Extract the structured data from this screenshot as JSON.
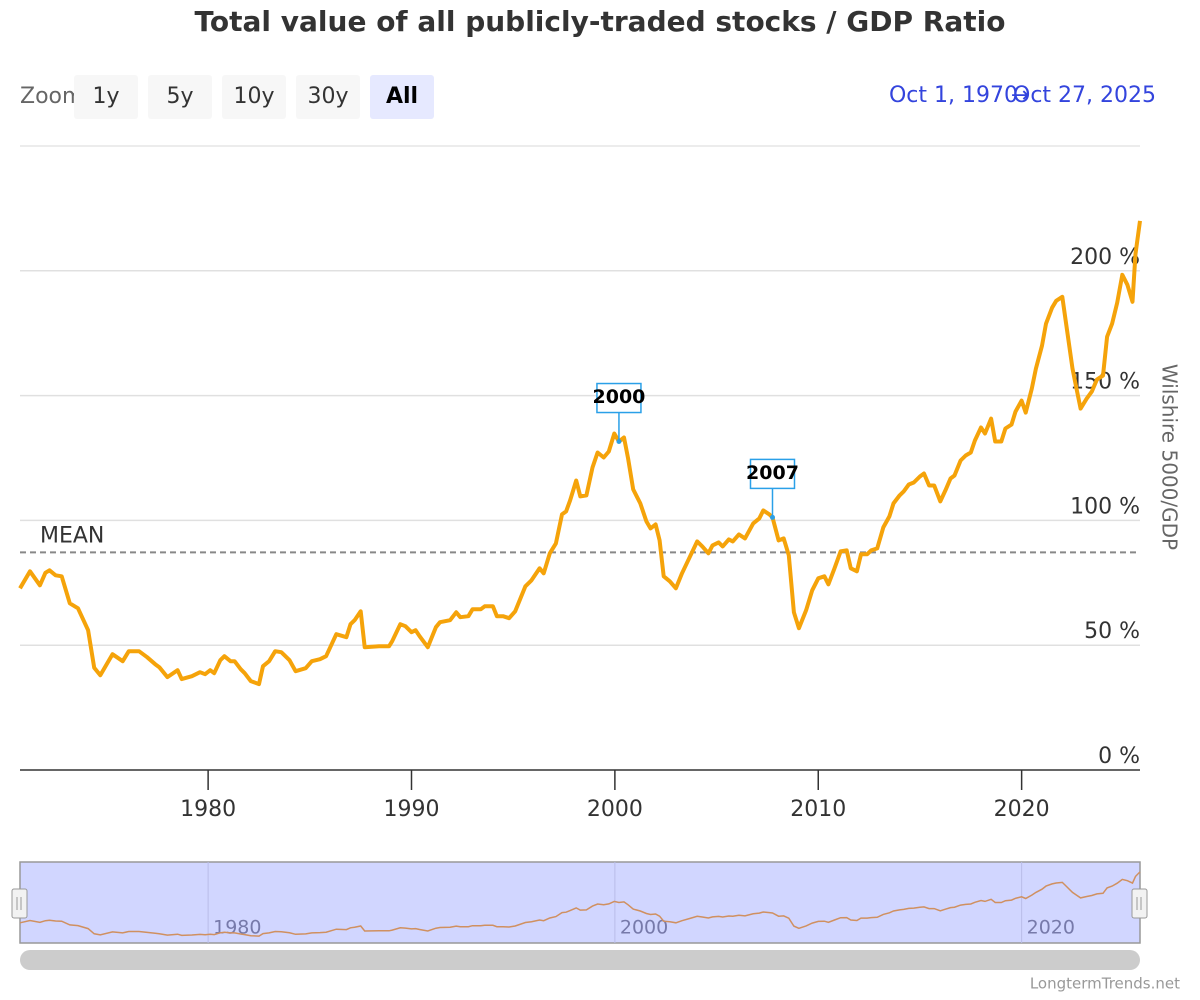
{
  "chart_data": {
    "type": "line",
    "title": "Total value of all publicly-traded stocks / GDP Ratio",
    "range_selector": {
      "label": "Zoom",
      "buttons": [
        "1y",
        "5y",
        "10y",
        "30y",
        "All"
      ],
      "selected": 4
    },
    "date_range": {
      "from": "Oct 1, 1970",
      "separator": "→",
      "to": "Oct 27, 2025"
    },
    "y_axis_title": "Wilshire 5000/GDP",
    "credit": "LongtermTrends.net",
    "xlim": [
      1970.75,
      2025.82
    ],
    "xticks": [
      1980,
      1990,
      2000,
      2010,
      2020
    ],
    "navigator_xticks": [
      1980,
      2000,
      2020
    ],
    "ylim": [
      0,
      250
    ],
    "yticks": [
      {
        "value": 0,
        "label": "0 %"
      },
      {
        "value": 50,
        "label": "50 %"
      },
      {
        "value": 100,
        "label": "100 %"
      },
      {
        "value": 150,
        "label": "150 %"
      },
      {
        "value": 200,
        "label": "200 %"
      }
    ],
    "grid": true,
    "mean": {
      "label": "MEAN",
      "value": 87.2
    },
    "annotations": [
      {
        "label": "2000",
        "x": 2000.2,
        "y": 131.6
      },
      {
        "label": "2007",
        "x": 2007.75,
        "y": 101.2
      }
    ],
    "series": [
      {
        "color": "#f5a30a",
        "navigator_color": "#d09060",
        "x": [
          1970.75,
          1971.24,
          1971.73,
          1972,
          1972.2,
          1972.5,
          1972.8,
          1973.2,
          1973.6,
          1974.1,
          1974.4,
          1974.7,
          1975.3,
          1975.8,
          1976.1,
          1976.6,
          1977,
          1977.4,
          1977.6,
          1978,
          1978.5,
          1978.7,
          1979.2,
          1979.6,
          1979.85,
          1980.1,
          1980.3,
          1980.6,
          1980.8,
          1981.1,
          1981.3,
          1981.6,
          1981.8,
          1982.1,
          1982.5,
          1982.7,
          1983,
          1983.3,
          1983.6,
          1984,
          1984.3,
          1984.8,
          1985.1,
          1985.5,
          1985.8,
          1986.3,
          1986.8,
          1987,
          1987.2,
          1987.5,
          1987.7,
          1988.4,
          1988.9,
          1989.05,
          1989.45,
          1989.7,
          1990,
          1990.2,
          1990.4,
          1990.8,
          1991.2,
          1991.4,
          1991.9,
          1992.2,
          1992.4,
          1992.8,
          1993,
          1993.4,
          1993.6,
          1994,
          1994.2,
          1994.5,
          1994.8,
          1995.1,
          1995.6,
          1995.9,
          1996.3,
          1996.5,
          1996.8,
          1997.1,
          1997.4,
          1997.6,
          1997.8,
          1998.1,
          1998.3,
          1998.6,
          1998.9,
          1999.15,
          1999.45,
          1999.7,
          1999.97,
          2000.2,
          2000.45,
          2000.65,
          2000.9,
          2001.25,
          2001.55,
          2001.75,
          2002,
          2002.2,
          2002.4,
          2002.7,
          2003,
          2003.3,
          2003.7,
          2004.05,
          2004.3,
          2004.6,
          2004.8,
          2005.1,
          2005.3,
          2005.6,
          2005.8,
          2006.1,
          2006.4,
          2006.8,
          2007.1,
          2007.3,
          2007.6,
          2007.75,
          2008.05,
          2008.3,
          2008.55,
          2008.8,
          2009.05,
          2009.4,
          2009.7,
          2010,
          2010.3,
          2010.5,
          2010.8,
          2011.1,
          2011.4,
          2011.6,
          2011.9,
          2012.1,
          2012.4,
          2012.6,
          2012.9,
          2013.2,
          2013.5,
          2013.7,
          2014,
          2014.2,
          2014.45,
          2014.7,
          2015,
          2015.2,
          2015.45,
          2015.7,
          2016,
          2016.25,
          2016.5,
          2016.7,
          2017,
          2017.25,
          2017.5,
          2017.7,
          2018,
          2018.2,
          2018.5,
          2018.7,
          2019,
          2019.2,
          2019.5,
          2019.7,
          2020,
          2020.2,
          2020.5,
          2020.7,
          2021,
          2021.2,
          2021.5,
          2021.7,
          2022,
          2022.2,
          2022.5,
          2022.7,
          2022.9,
          2023.2,
          2023.45,
          2023.7,
          2024,
          2024.2,
          2024.45,
          2024.7,
          2024.95,
          2025.2,
          2025.45,
          2025.6,
          2025.82
        ],
        "values": [
          72.8,
          79.6,
          74,
          79,
          80,
          78,
          77.6,
          66.8,
          64.8,
          56,
          41,
          38,
          46.4,
          43.6,
          47.6,
          47.6,
          45.2,
          42.4,
          41.2,
          37.2,
          40,
          36.4,
          37.6,
          39.2,
          38.4,
          40,
          38.8,
          44,
          45.6,
          43.6,
          43.6,
          40.4,
          38.8,
          35.6,
          34.4,
          41.6,
          43.6,
          47.6,
          47.2,
          44,
          39.6,
          40.8,
          43.6,
          44.4,
          45.6,
          54.4,
          53.2,
          58.4,
          60,
          63.6,
          49.2,
          49.6,
          49.6,
          51.6,
          58.4,
          57.6,
          55.2,
          56,
          53.6,
          49.2,
          57.2,
          59.2,
          60,
          63.2,
          61.2,
          61.6,
          64.4,
          64.4,
          65.6,
          65.6,
          61.6,
          61.6,
          60.8,
          63.6,
          73.6,
          76,
          80.8,
          78.8,
          86.8,
          90.8,
          102.4,
          103.6,
          108,
          116,
          109.6,
          110,
          121.2,
          127.2,
          125.2,
          127.6,
          134.8,
          131.6,
          133.2,
          124.8,
          112.4,
          106.8,
          99.6,
          96.8,
          98.4,
          92,
          77.6,
          75.6,
          72.8,
          78.8,
          85.6,
          91.6,
          89.6,
          86.8,
          90,
          91.2,
          89.6,
          92.4,
          91.6,
          94.4,
          92.8,
          98.8,
          100.8,
          104,
          102.4,
          101.2,
          92,
          92.8,
          86,
          63.2,
          56.8,
          64,
          72,
          76.8,
          77.6,
          74.4,
          80.8,
          87.6,
          88,
          80.8,
          79.6,
          86.4,
          86.4,
          88,
          88.8,
          97.2,
          101.6,
          106.8,
          110,
          111.6,
          114.4,
          115.2,
          117.6,
          118.8,
          114,
          114,
          107.6,
          112,
          116.8,
          118,
          124,
          126,
          127.2,
          132,
          137.2,
          134.8,
          140.8,
          131.6,
          131.6,
          136.8,
          138.4,
          143.6,
          148,
          143.2,
          152.8,
          160.8,
          170,
          178.8,
          185.2,
          188,
          189.6,
          178,
          160.8,
          152.8,
          144.8,
          148.8,
          151.6,
          156.4,
          158,
          173.6,
          178.8,
          187.2,
          198.4,
          194.4,
          187.6,
          206.8,
          220
        ]
      }
    ]
  }
}
